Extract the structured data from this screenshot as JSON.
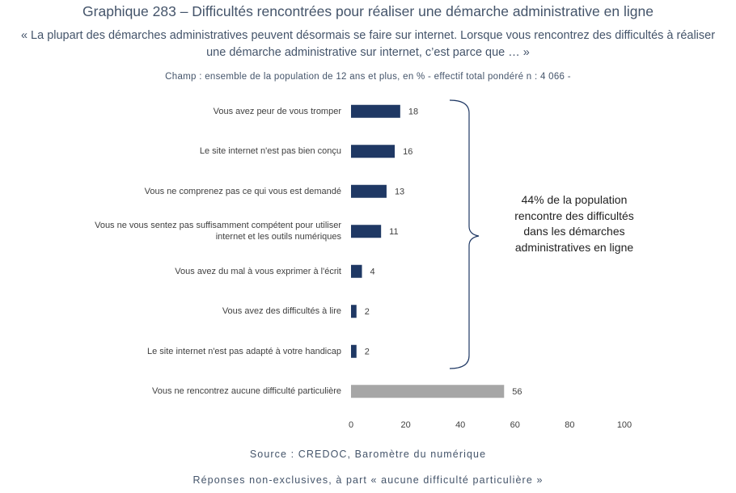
{
  "chart_data": {
    "type": "bar",
    "orientation": "horizontal",
    "title": "Graphique 283 – Difficultés rencontrées pour réaliser une démarche administrative en ligne",
    "subtitle": "« La plupart des démarches administratives peuvent désormais se faire sur internet. Lorsque vous rencontrez des difficultés à réaliser une démarche administrative sur internet, c’est parce que … »",
    "scope": "Champ : ensemble de la population de 12 ans et plus, en % - effectif total pondéré n : 4 066 -",
    "categories": [
      "Vous avez peur de vous tromper",
      "Le site internet n'est pas bien conçu",
      "Vous ne comprenez pas ce qui vous est demandé",
      "Vous ne vous sentez pas suffisamment compétent pour utiliser internet et les outils numériques",
      "Vous avez du mal à vous exprimer à l'écrit",
      "Vous avez des difficultés à lire",
      "Le site internet n'est pas adapté à votre handicap",
      "Vous ne rencontrez aucune difficulté particulière"
    ],
    "values": [
      18,
      16,
      13,
      11,
      4,
      2,
      2,
      56
    ],
    "colors": [
      "#1f3864",
      "#1f3864",
      "#1f3864",
      "#1f3864",
      "#1f3864",
      "#1f3864",
      "#1f3864",
      "#a6a6a6"
    ],
    "xlim": [
      0,
      100
    ],
    "xticks": [
      0,
      20,
      40,
      60,
      80,
      100
    ],
    "grid": false,
    "annotation": "44% de la population rencontre des difficultés dans les démarches administratives en ligne",
    "source": "Source :  CREDOC, Baromètre du numérique",
    "note": "Réponses non-exclusives, à part « aucune difficulté particulière »"
  }
}
